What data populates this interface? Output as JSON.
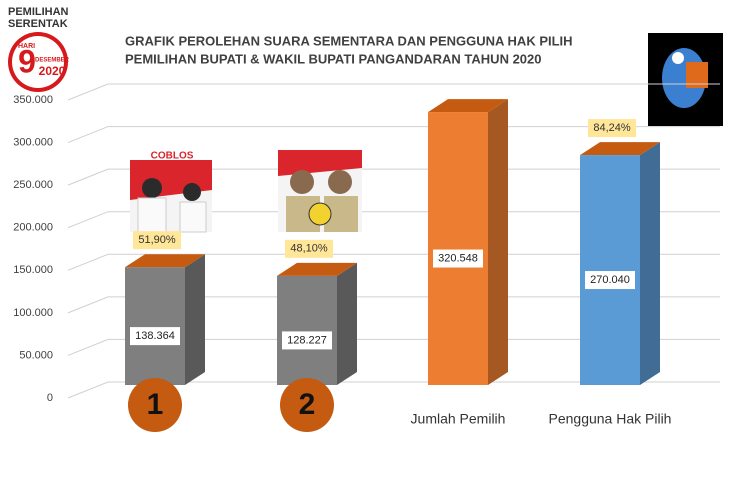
{
  "logo": {
    "line1": "PEMILIHAN",
    "line2": "SERENTAK",
    "day_label": "HARI",
    "day": "9",
    "month": "DESEMBER",
    "year": "2020"
  },
  "photo_caption": "COBLOS",
  "chart_data": {
    "type": "bar3d",
    "title": "GRAFIK PEROLEHAN SUARA SEMENTARA DAN PENGGUNA HAK PILIH",
    "subtitle": "PEMILIHAN BUPATI & WAKIL BUPATI PANGANDARAN TAHUN 2020",
    "categories": [
      "1",
      "2",
      "Jumlah Pemilih",
      "Pengguna Hak Pilih"
    ],
    "values": [
      138364,
      128227,
      320548,
      270040
    ],
    "value_labels": [
      "138.364",
      "128.227",
      "320.548",
      "270.040"
    ],
    "annotations": [
      "51,90%",
      "48,10%",
      null,
      "84,24%"
    ],
    "colors": [
      "#7f7f7f",
      "#7f7f7f",
      "#ed7d31",
      "#5b9bd5"
    ],
    "top_colors": [
      "#c55a11",
      "#c55a11",
      "#c55a11",
      "#c55a11"
    ],
    "ylim": [
      0,
      350000
    ],
    "yticks": [
      0,
      {
        "value": 50000,
        "label": "50.000"
      },
      {
        "value": 100000,
        "label": "100.000"
      },
      {
        "value": 150000,
        "label": "150.000"
      },
      {
        "value": 200000,
        "label": "200.000"
      },
      {
        "value": 250000,
        "label": "250.000"
      },
      {
        "value": 300000,
        "label": "300.000"
      },
      {
        "value": 350000,
        "label": "350.000"
      }
    ],
    "grid": true
  }
}
